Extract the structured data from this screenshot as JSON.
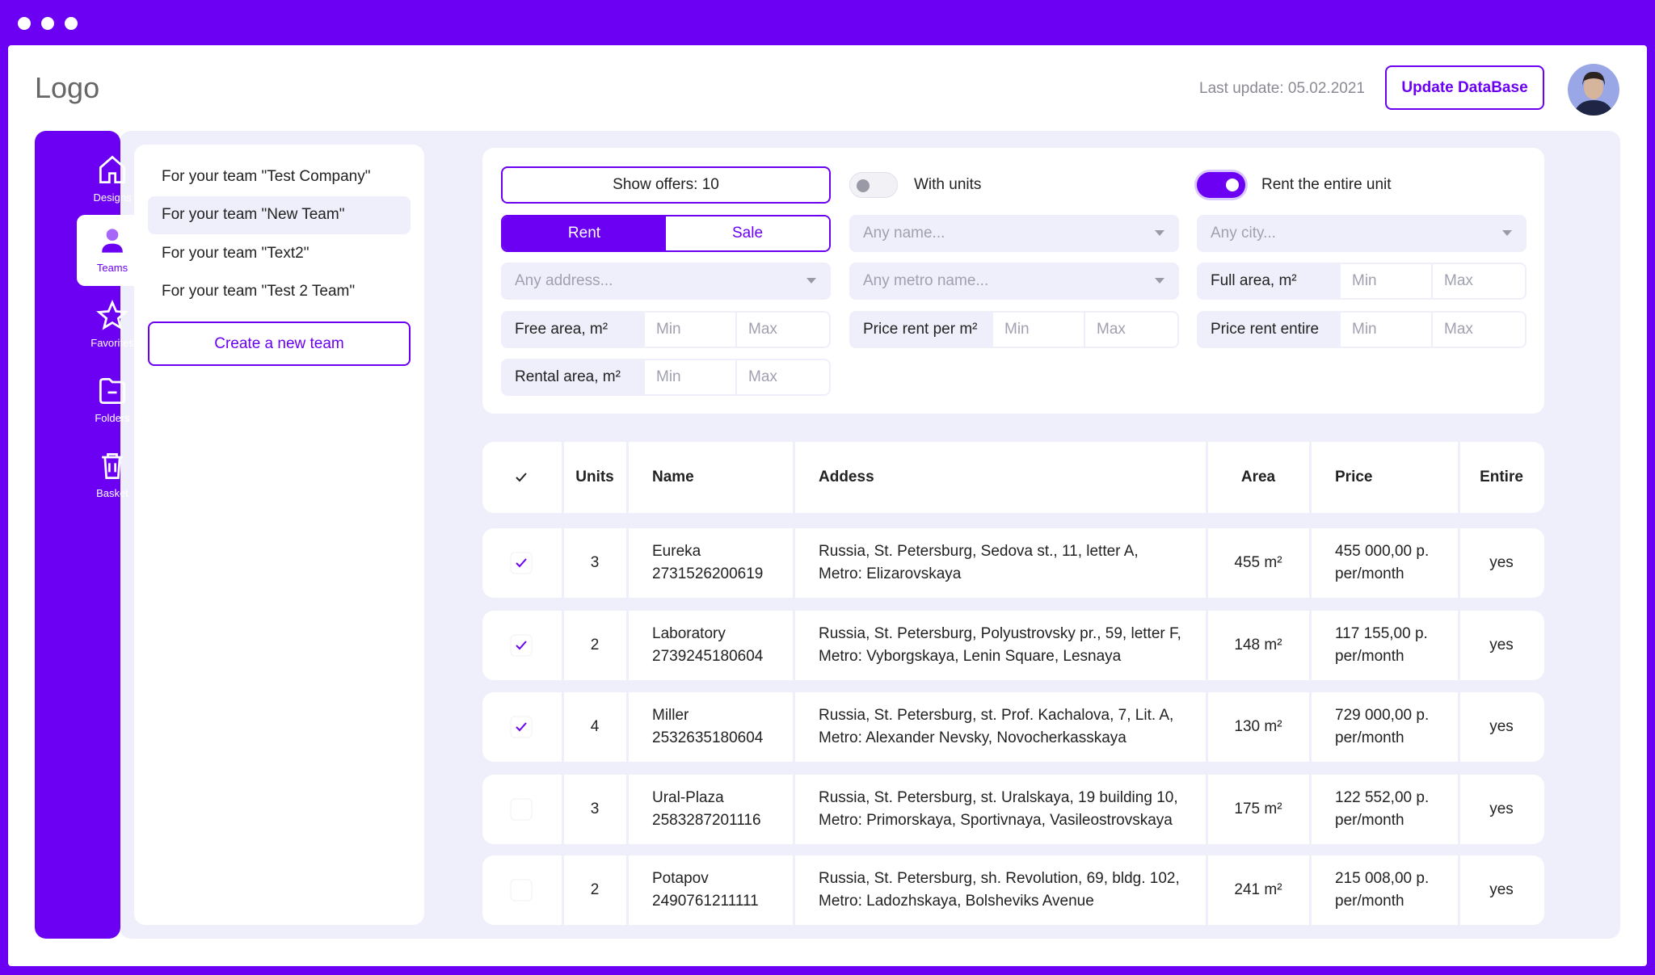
{
  "header": {
    "logo": "Logo",
    "last_update": "Last update: 05.02.2021",
    "update_button": "Update DataBase"
  },
  "sidebar": {
    "items": [
      "Designs",
      "Teams",
      "Favorites",
      "Folders",
      "Basket"
    ],
    "active": 1
  },
  "teams": {
    "items": [
      "For your team \"Test Company\"",
      "For your team \"New Team\"",
      "For your team \"Text2\"",
      "For your team \"Test 2 Team\""
    ],
    "active": 1,
    "create_button": "Create a new team"
  },
  "filters": {
    "columns": [
      [
        {
          "kind": "button",
          "label": "Show offers: 10"
        },
        {
          "kind": "tabs",
          "options": [
            "Rent",
            "Sale"
          ],
          "active": 0
        },
        {
          "kind": "select",
          "placeholder": "Any address..."
        },
        {
          "kind": "range",
          "label": "Free area, m²",
          "min": "Min",
          "max": "Max"
        },
        {
          "kind": "range",
          "label": "Rental area, m²",
          "min": "Min",
          "max": "Max"
        }
      ],
      [
        {
          "kind": "toggle",
          "label": "With units",
          "on": false
        },
        {
          "kind": "select",
          "placeholder": "Any name..."
        },
        {
          "kind": "select",
          "placeholder": "Any metro name..."
        },
        {
          "kind": "range",
          "label": "Price rent per m²",
          "min": "Min",
          "max": "Max"
        }
      ],
      [
        {
          "kind": "toggle",
          "label": "Rent the entire unit",
          "on": true
        },
        {
          "kind": "select",
          "placeholder": "Any city..."
        },
        {
          "kind": "range",
          "label": "Full area, m²",
          "min": "Min",
          "max": "Max"
        },
        {
          "kind": "range",
          "label": "Price rent entire",
          "min": "Min",
          "max": "Max"
        }
      ]
    ]
  },
  "table": {
    "columns": [
      "Units",
      "Name",
      "Addess",
      "Area",
      "Price",
      "Entire"
    ],
    "rows": [
      {
        "checked": true,
        "units": "3",
        "name": "Eureka",
        "id": "2731526200619",
        "address": [
          "Russia, St. Petersburg, Sedova st., 11, letter A,",
          "Metro: Elizarovskaya"
        ],
        "area": "455 m²",
        "price": [
          "455 000,00 p.",
          "per/month"
        ],
        "entire": "yes"
      },
      {
        "checked": true,
        "units": "2",
        "name": "Laboratory",
        "id": "2739245180604",
        "address": [
          "Russia, St. Petersburg, Polyustrovsky pr., 59, letter F,",
          "Metro: Vyborgskaya, Lenin Square, Lesnaya"
        ],
        "area": "148 m²",
        "price": [
          "117 155,00 p.",
          "per/month"
        ],
        "entire": "yes"
      },
      {
        "checked": true,
        "units": "4",
        "name": "Miller",
        "id": "2532635180604",
        "address": [
          "Russia, St. Petersburg, st. Prof. Kachalova, 7, Lit. A,",
          "Metro: Alexander Nevsky, Novocherkasskaya"
        ],
        "area": "130 m²",
        "price": [
          "729 000,00 p.",
          "per/month"
        ],
        "entire": "yes"
      },
      {
        "checked": false,
        "units": "3",
        "name": "Ural-Plaza",
        "id": "2583287201116",
        "address": [
          "Russia, St. Petersburg, st. Uralskaya, 19 building 10,",
          "Metro: Primorskaya, Sportivnaya, Vasileostrovskaya"
        ],
        "area": "175 m²",
        "price": [
          "122 552,00 p.",
          "per/month"
        ],
        "entire": "yes"
      },
      {
        "checked": false,
        "units": "2",
        "name": "Potapov",
        "id": "2490761211111",
        "address": [
          "Russia, St. Petersburg, sh. Revolution, 69, bldg. 102,",
          "Metro: Ladozhskaya, Bolsheviks Avenue"
        ],
        "area": "241 m²",
        "price": [
          "215 008,00 p.",
          "per/month"
        ],
        "entire": "yes"
      }
    ]
  }
}
